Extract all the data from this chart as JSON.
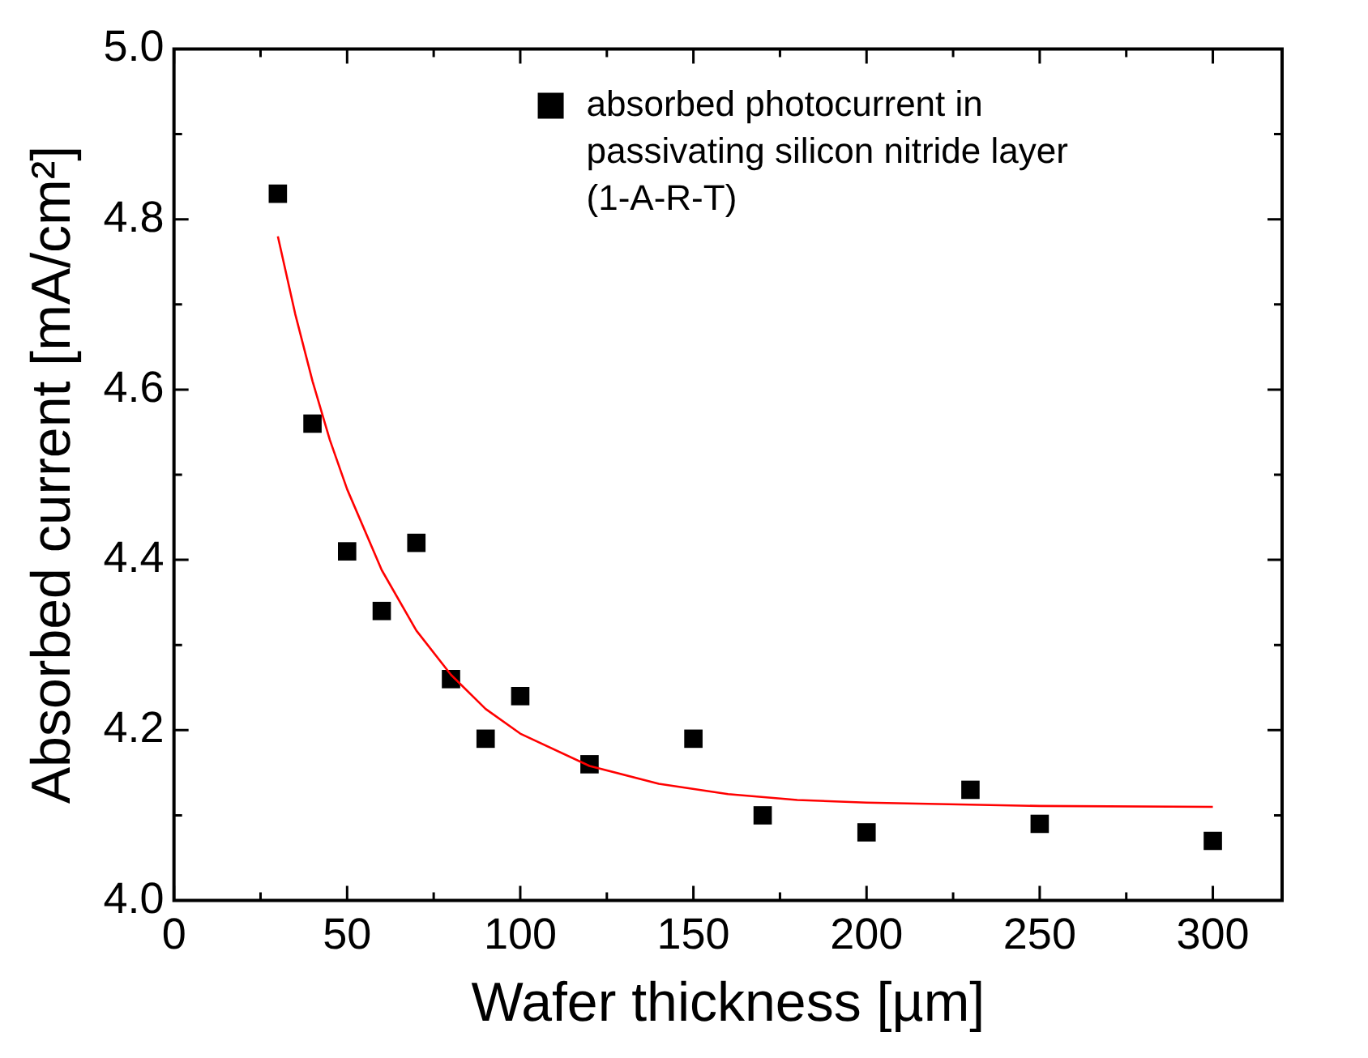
{
  "chart_data": {
    "type": "scatter",
    "xlabel": "Wafer thickness [µm]",
    "ylabel": "Absorbed current [mA/cm²]",
    "xlim": [
      0,
      320
    ],
    "ylim": [
      4.0,
      5.0
    ],
    "xticks": [
      0,
      {
        "value": 25,
        "label": null
      },
      50,
      {
        "value": 75,
        "label": null
      },
      100,
      {
        "value": 125,
        "label": null
      },
      150,
      {
        "value": 175,
        "label": null
      },
      200,
      {
        "value": 225,
        "label": null
      },
      250,
      {
        "value": 275,
        "label": null
      },
      300
    ],
    "yticks": [
      {
        "value": 4.0,
        "label": "4.0"
      },
      {
        "value": 4.1,
        "label": null
      },
      4.2,
      {
        "value": 4.3,
        "label": null
      },
      4.4,
      {
        "value": 4.5,
        "label": null
      },
      4.6,
      {
        "value": 4.7,
        "label": null
      },
      4.8,
      {
        "value": 4.9,
        "label": null
      },
      {
        "value": 5.0,
        "label": "5.0"
      }
    ],
    "legend": "top right",
    "grid": false,
    "series": [
      {
        "name": "absorbed photocurrent in passivating silicon nitride layer (1-A-R-T)",
        "marker": "square",
        "color": "#000000",
        "x": [
          30,
          40,
          50,
          60,
          70,
          80,
          90,
          100,
          120,
          150,
          170,
          200,
          230,
          250,
          300
        ],
        "values": [
          4.83,
          4.56,
          4.41,
          4.34,
          4.42,
          4.26,
          4.19,
          4.24,
          4.16,
          4.19,
          4.1,
          4.08,
          4.13,
          4.09,
          4.07
        ]
      },
      {
        "type": "line",
        "marker": "none",
        "line_style": "solid",
        "color": "#ff0000",
        "x": [
          30,
          35,
          40,
          45,
          50,
          60,
          70,
          80,
          90,
          100,
          120,
          140,
          160,
          180,
          200,
          250,
          300
        ],
        "values": [
          4.78,
          4.689,
          4.61,
          4.541,
          4.483,
          4.388,
          4.317,
          4.265,
          4.225,
          4.196,
          4.158,
          4.137,
          4.125,
          4.118,
          4.115,
          4.111,
          4.11
        ]
      }
    ]
  }
}
